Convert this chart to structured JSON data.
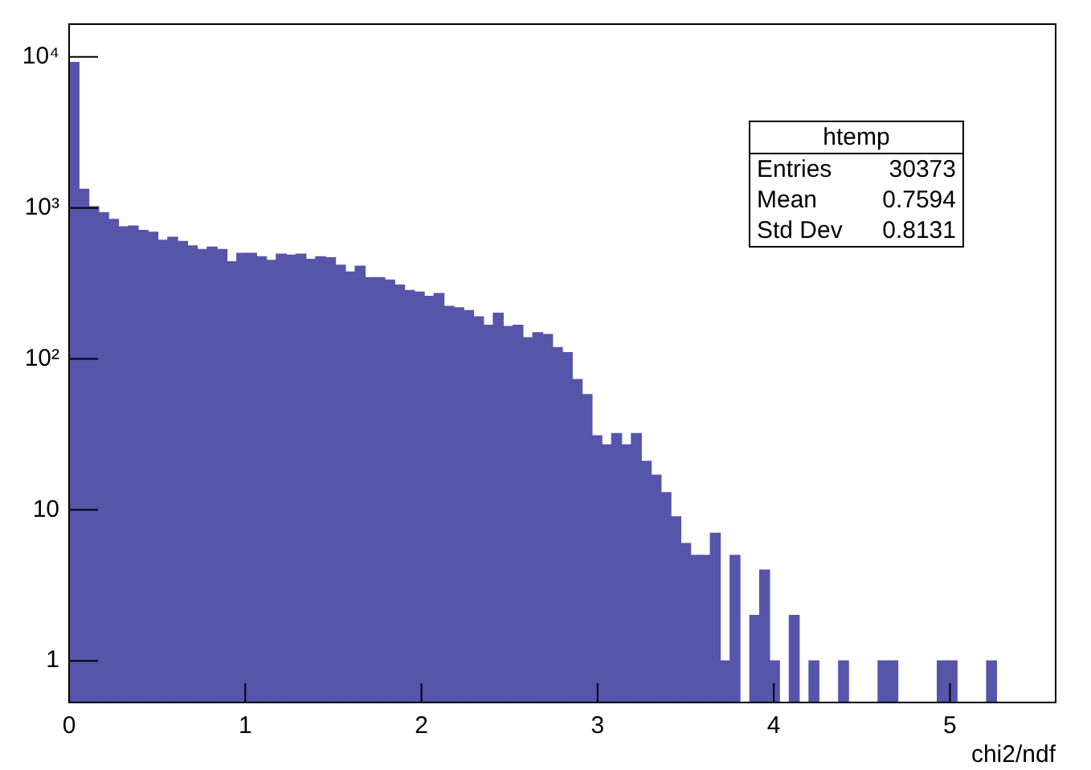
{
  "chart_data": {
    "type": "histogram",
    "xlabel": "chi2/ndf",
    "color": "#5555aa",
    "log": true,
    "grid": false,
    "legend": false,
    "annotations": [
      "htemp",
      "Entries 30373",
      "Mean 0.7594",
      "Std Dev 0.8131"
    ],
    "bins": [
      0,
      0.056,
      0.112,
      0.168,
      0.224,
      0.28,
      0.336,
      0.392,
      0.448,
      0.504,
      0.56,
      0.616,
      0.672,
      0.728,
      0.784,
      0.84,
      0.896,
      0.952,
      1.008,
      1.064,
      1.12,
      1.176,
      1.232,
      1.288,
      1.344,
      1.4,
      1.456,
      1.512,
      1.568,
      1.624,
      1.68,
      1.736,
      1.792,
      1.848,
      1.904,
      1.96,
      2.016,
      2.072,
      2.128,
      2.184,
      2.24,
      2.296,
      2.352,
      2.408,
      2.464,
      2.52,
      2.576,
      2.632,
      2.688,
      2.744,
      2.8,
      2.856,
      2.912,
      2.968,
      3.024,
      3.08,
      3.136,
      3.192,
      3.248,
      3.304,
      3.36,
      3.416,
      3.472,
      3.528,
      3.584,
      3.64,
      3.696,
      3.752,
      3.808,
      3.864,
      3.92,
      3.976,
      4.032,
      4.088,
      4.144,
      4.2,
      4.256,
      4.312,
      4.368,
      4.424,
      4.48,
      4.536,
      4.592,
      4.648,
      4.704,
      4.76,
      4.816,
      4.872,
      4.928,
      4.984,
      5.04,
      5.096,
      5.152,
      5.208,
      5.264,
      5.32,
      5.376,
      5.432,
      5.488,
      5.544,
      5.6
    ],
    "values": [
      9200,
      1330,
      1020,
      930,
      840,
      750,
      760,
      710,
      690,
      610,
      640,
      600,
      560,
      530,
      550,
      530,
      440,
      500,
      500,
      475,
      450,
      495,
      487,
      495,
      456,
      475,
      468,
      418,
      376,
      411,
      345,
      345,
      333,
      308,
      284,
      277,
      260,
      271,
      223,
      218,
      209,
      190,
      167,
      201,
      164,
      167,
      138,
      149,
      145,
      119,
      110,
      73,
      58,
      31,
      27,
      32,
      27,
      32,
      21,
      17,
      13,
      9,
      6,
      5,
      5,
      7,
      1,
      5,
      null,
      2,
      4,
      1,
      null,
      2,
      null,
      1,
      null,
      null,
      1,
      null,
      null,
      null,
      1,
      1,
      null,
      null,
      null,
      null,
      1,
      1,
      null,
      null,
      null,
      1,
      null,
      null,
      null,
      null,
      null,
      null
    ],
    "xlim": [
      0,
      5.6
    ],
    "xticks": [
      0,
      1,
      2,
      3,
      4,
      5
    ],
    "ylim": [
      0.53,
      16500
    ],
    "yticks": [
      1,
      10,
      {
        "value": 100,
        "label": "10²"
      },
      {
        "value": 1000,
        "label": "10³"
      },
      {
        "value": 10000,
        "label": "10⁴"
      }
    ]
  }
}
